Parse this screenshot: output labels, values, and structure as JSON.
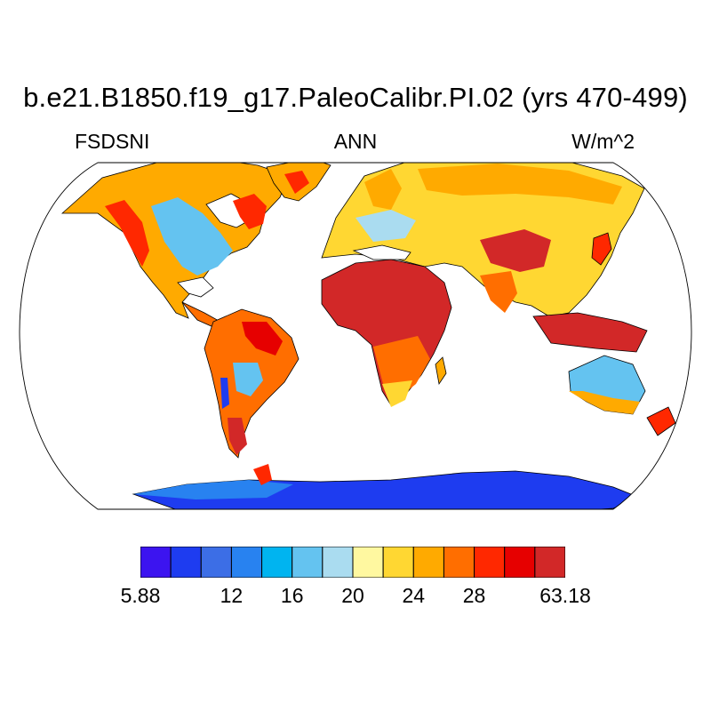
{
  "map": {
    "title": "b.e21.B1850.f19_g17.PaleoCalibr.PI.02 (yrs 470-499)",
    "variable": "FSDSNI",
    "season": "ANN",
    "units": "W/m^2",
    "projection": "Robinson",
    "colorbar": {
      "colors": [
        "#3c14f0",
        "#1e3cf0",
        "#3c6ee6",
        "#2882f0",
        "#00b4f0",
        "#64c3f0",
        "#aadcf0",
        "#fff8a0",
        "#ffd732",
        "#ffaa00",
        "#ff6e00",
        "#ff2800",
        "#e60000",
        "#d22828"
      ],
      "tick_labels": [
        "5.88",
        "12",
        "16",
        "20",
        "24",
        "28",
        "63.18"
      ]
    }
  }
}
